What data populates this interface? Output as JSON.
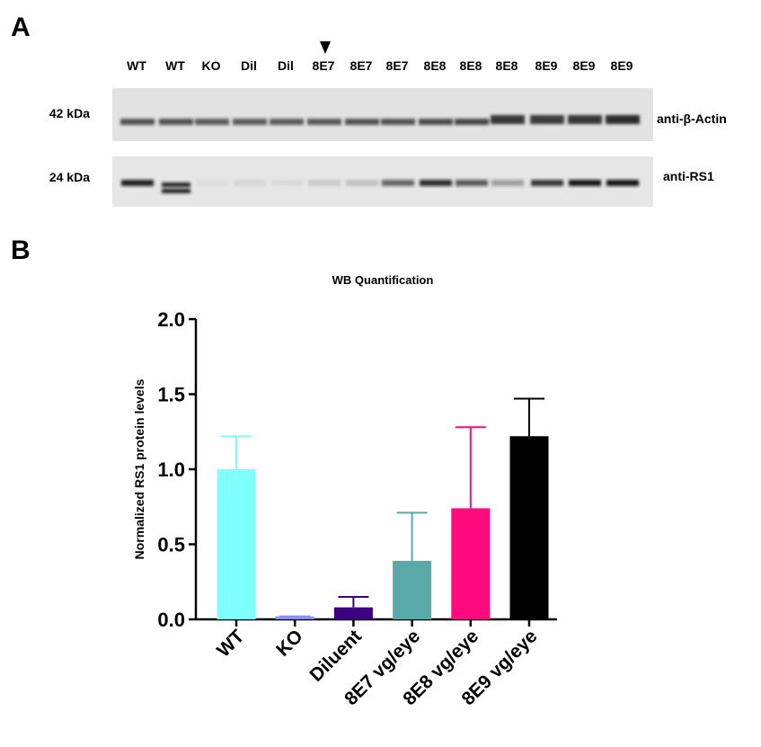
{
  "panel_a": {
    "label": "A",
    "lanes": [
      "WT",
      "WT",
      "KO",
      "Dil",
      "Dil",
      "8E7",
      "8E7",
      "8E7",
      "8E8",
      "8E8",
      "8E8",
      "8E9",
      "8E9",
      "8E9"
    ],
    "marker_labels": [
      "42 kDa",
      "24 kDa"
    ],
    "antibody_labels": [
      "anti-β-Actin",
      "anti-RS1"
    ]
  },
  "panel_b": {
    "label": "B"
  },
  "chart_data": {
    "type": "bar",
    "title": "WB Quantification",
    "y_label": "Normalized RS1 protein levels",
    "categories": [
      "WT",
      "KO",
      "Diluent",
      "8E7 vg/eye",
      "8E8 vg/eye",
      "8E9 vg/eye"
    ],
    "values": [
      1.0,
      0.02,
      0.08,
      0.39,
      0.74,
      1.22
    ],
    "errors": [
      0.22,
      0,
      0.07,
      0.32,
      0.54,
      0.25
    ],
    "colors": [
      "#80ffff",
      "#8c8cff",
      "#3d0080",
      "#5aa9a9",
      "#ff0a7f",
      "#000000"
    ],
    "ylim": [
      0,
      2
    ],
    "yticks": [
      {
        "value": 0,
        "label": "0.0"
      },
      {
        "value": 0.5,
        "label": "0.5"
      },
      {
        "value": 1,
        "label": "1.0"
      },
      {
        "value": 1.5,
        "label": "1.5"
      },
      {
        "value": 2,
        "label": "2.0"
      }
    ]
  }
}
